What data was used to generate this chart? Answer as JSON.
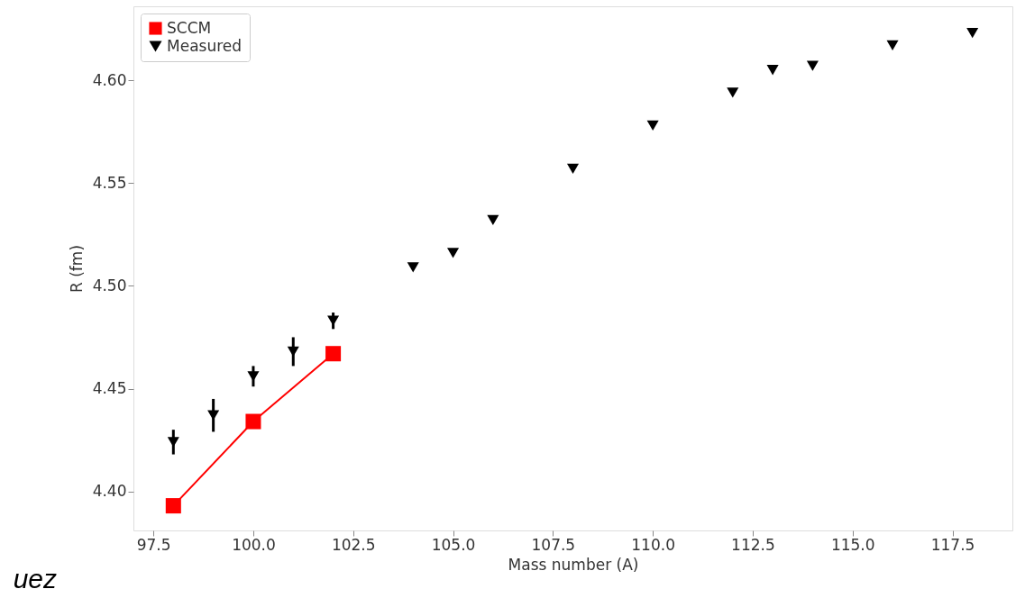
{
  "chart_data": {
    "type": "line",
    "xlabel": "Mass number (A)",
    "ylabel": "R (fm)",
    "xlim": [
      97,
      119
    ],
    "ylim": [
      4.381,
      4.636
    ],
    "xticks": [
      {
        "value": 97.5,
        "label": "97.5"
      },
      {
        "value": 100,
        "label": "100.0"
      },
      {
        "value": 102.5,
        "label": "102.5"
      },
      {
        "value": 105,
        "label": "105.0"
      },
      {
        "value": 107.5,
        "label": "107.5"
      },
      {
        "value": 110,
        "label": "110.0"
      },
      {
        "value": 112.5,
        "label": "112.5"
      },
      {
        "value": 115,
        "label": "115.0"
      },
      {
        "value": 117.5,
        "label": "117.5"
      }
    ],
    "yticks": [
      {
        "value": 4.4,
        "label": "4.40"
      },
      {
        "value": 4.45,
        "label": "4.45"
      },
      {
        "value": 4.5,
        "label": "4.50"
      },
      {
        "value": 4.55,
        "label": "4.55"
      },
      {
        "value": 4.6,
        "label": "4.60"
      }
    ],
    "grid": false,
    "legend": "top left",
    "annotations": [
      "uez"
    ],
    "series": [
      {
        "name": "SCCM",
        "color": "#ff0000",
        "marker": "square",
        "x": [
          98,
          100,
          102
        ],
        "values": [
          4.393,
          4.434,
          4.467
        ]
      },
      {
        "name": "Measured",
        "type": "scatter",
        "color": "#000000",
        "marker": "triangle",
        "x": [
          98,
          99,
          100,
          101,
          102,
          104,
          105,
          106,
          108,
          110,
          112,
          113,
          114,
          116,
          118
        ],
        "values": [
          4.424,
          4.437,
          4.456,
          4.468,
          4.483,
          4.509,
          4.516,
          4.532,
          4.557,
          4.578,
          4.594,
          4.605,
          4.607,
          4.617,
          4.623
        ],
        "errors": [
          0.006,
          0.008,
          0.005,
          0.007,
          0.004,
          null,
          null,
          null,
          null,
          null,
          null,
          null,
          null,
          null,
          null
        ]
      }
    ]
  }
}
